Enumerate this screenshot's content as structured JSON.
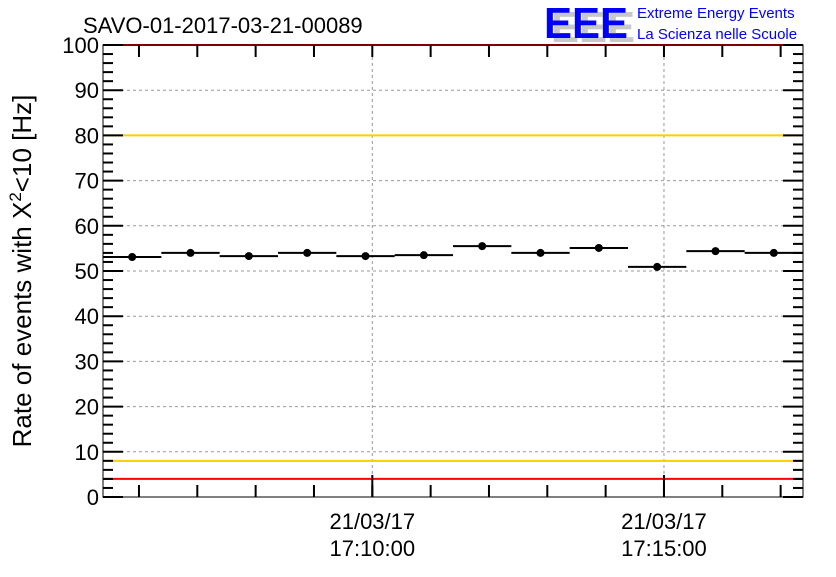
{
  "chart_data": {
    "type": "scatter",
    "title": "SAVO-01-2017-03-21-00089",
    "xlabel": "",
    "ylabel": "Rate of events with X",
    "ylabel_sup": "2",
    "ylabel_suffix": "<10 [Hz]",
    "ylim": [
      0,
      100
    ],
    "xlim": [
      "17:05:23",
      "17:17:23"
    ],
    "y_major_ticks": [
      0,
      10,
      20,
      30,
      40,
      50,
      60,
      70,
      80,
      90,
      100
    ],
    "x_major_ticks": [
      {
        "time": "17:10:00",
        "date_label": "21/03/17",
        "time_label": "17:10:00"
      },
      {
        "time": "17:15:00",
        "date_label": "21/03/17",
        "time_label": "17:15:00"
      }
    ],
    "grid": true,
    "bin_width_seconds": 60,
    "series": [
      {
        "name": "rate",
        "x": [
          "17:05:53",
          "17:06:53",
          "17:07:53",
          "17:08:53",
          "17:09:53",
          "17:10:53",
          "17:11:53",
          "17:12:53",
          "17:13:53",
          "17:14:53",
          "17:15:53",
          "17:16:53"
        ],
        "values": [
          53.1,
          54.0,
          53.3,
          54.0,
          53.3,
          53.5,
          55.5,
          54.0,
          55.1,
          50.9,
          54.4,
          54.0
        ]
      }
    ],
    "reference_lines": [
      {
        "value": 100,
        "color": "#ff0000"
      },
      {
        "value": 4,
        "color": "#ff0000"
      },
      {
        "value": 80,
        "color": "#ffcc00"
      },
      {
        "value": 8,
        "color": "#ffcc00"
      }
    ]
  },
  "logo": {
    "mark": "EEE",
    "line1": "Extreme Energy Events",
    "line2": "La Scienza nelle Scuole",
    "color": "#0000ff"
  }
}
